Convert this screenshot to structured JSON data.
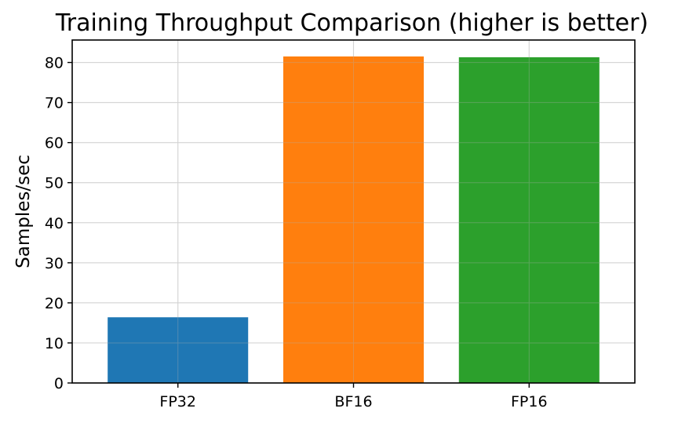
{
  "chart_data": {
    "type": "bar",
    "title": "Training Throughput Comparison (higher is better)",
    "xlabel": "",
    "ylabel": "Samples/sec",
    "categories": [
      "FP32",
      "BF16",
      "FP16"
    ],
    "values": [
      16.4,
      81.5,
      81.3
    ],
    "colors": [
      "#1f77b4",
      "#ff7f0e",
      "#2ca02c"
    ],
    "ylim": [
      0,
      85.6
    ],
    "yticks": [
      0,
      10,
      20,
      30,
      40,
      50,
      60,
      70,
      80
    ],
    "grid": true,
    "legend": "none"
  }
}
